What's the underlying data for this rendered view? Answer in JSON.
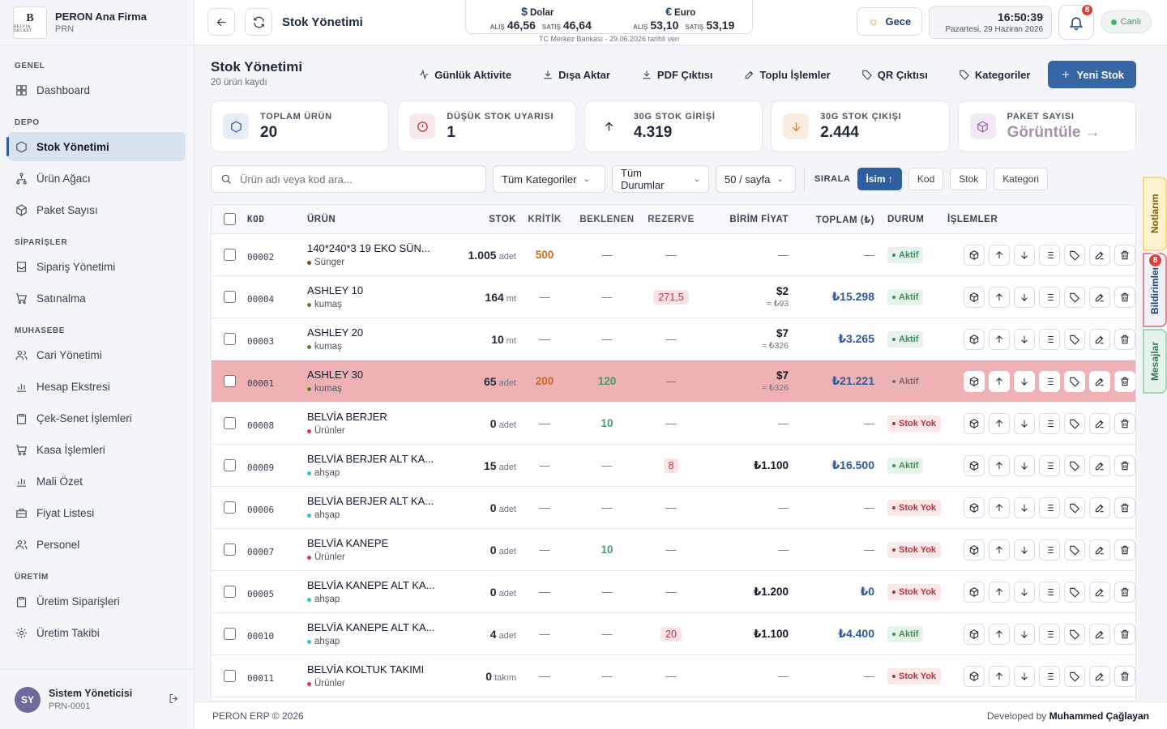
{
  "brand": {
    "name": "PERON Ana Firma",
    "code": "PRN",
    "logo_mark": "B",
    "logo_text": "BELVIA DECKET"
  },
  "sidebar": {
    "groups": [
      {
        "title": "GENEL",
        "items": [
          {
            "label": "Dashboard",
            "icon": "grid-icon"
          }
        ]
      },
      {
        "title": "DEPO",
        "items": [
          {
            "label": "Stok Yönetimi",
            "icon": "hexagon-icon",
            "active": true
          },
          {
            "label": "Ürün Ağacı",
            "icon": "tree-icon"
          },
          {
            "label": "Paket Sayısı",
            "icon": "box-icon"
          }
        ]
      },
      {
        "title": "SİPARİŞLER",
        "items": [
          {
            "label": "Sipariş Yönetimi",
            "icon": "inbox-icon"
          },
          {
            "label": "Satınalma",
            "icon": "cart-icon"
          }
        ]
      },
      {
        "title": "MUHASEBE",
        "items": [
          {
            "label": "Cari Yönetimi",
            "icon": "users-icon"
          },
          {
            "label": "Hesap Ekstresi",
            "icon": "bar-chart-icon"
          },
          {
            "label": "Çek-Senet İşlemleri",
            "icon": "clipboard-icon"
          },
          {
            "label": "Kasa İşlemleri",
            "icon": "cart-icon"
          },
          {
            "label": "Mali Özet",
            "icon": "bar-chart-icon"
          },
          {
            "label": "Fiyat Listesi",
            "icon": "briefcase-icon"
          },
          {
            "label": "Personel",
            "icon": "users-icon"
          }
        ]
      },
      {
        "title": "ÜRETİM",
        "items": [
          {
            "label": "Üretim Siparişleri",
            "icon": "clipboard-icon"
          },
          {
            "label": "Üretim Takibi",
            "icon": "gear-icon"
          }
        ]
      }
    ]
  },
  "user": {
    "initials": "SY",
    "name": "Sistem Yöneticisi",
    "code": "PRN-0001"
  },
  "topbar": {
    "title": "Stok Yönetimi",
    "usd": {
      "label": "Dolar",
      "symbol": "$",
      "buy_label": "ALIŞ",
      "buy": "46,56",
      "sell_label": "SATIŞ",
      "sell": "46,64"
    },
    "eur": {
      "label": "Euro",
      "symbol": "€",
      "buy_label": "ALIŞ",
      "buy": "53,10",
      "sell_label": "SATIŞ",
      "sell": "53,19"
    },
    "fx_note": "TC Merkez Bankası - 29.06.2026 tarihli veri",
    "theme_label": "Gece",
    "time": "16:50:39",
    "date": "Pazartesi, 29 Haziran 2026",
    "notif_count": "8",
    "live_label": "Canlı"
  },
  "page": {
    "title": "Stok Yönetimi",
    "subtitle": "20 ürün kaydı",
    "actions": [
      "Günlük Aktivite",
      "Dışa Aktar",
      "PDF Çıktısı",
      "Toplu İşlemler",
      "QR Çıktısı",
      "Kategoriler"
    ],
    "primary_action": "Yeni Stok"
  },
  "stats": [
    {
      "label": "TOPLAM ÜRÜN",
      "value": "20",
      "icon": "hexagon-icon"
    },
    {
      "label": "DÜŞÜK STOK UYARISI",
      "value": "1",
      "icon": "alert-icon"
    },
    {
      "label": "30G STOK GİRİŞİ",
      "value": "4.319",
      "icon": "arrow-up-icon"
    },
    {
      "label": "30G STOK ÇIKIŞI",
      "value": "2.444",
      "icon": "arrow-down-icon"
    },
    {
      "label": "PAKET SAYISI",
      "value": "Görüntüle →",
      "icon": "box-icon"
    }
  ],
  "filters": {
    "search_placeholder": "Ürün adı veya kod ara...",
    "category": "Tüm Kategoriler",
    "status": "Tüm Durumlar",
    "per_page": "50 / sayfa",
    "sort_label": "SIRALA",
    "sort_options": [
      "İsim ↑",
      "Kod",
      "Stok",
      "Kategori"
    ]
  },
  "table": {
    "headers": [
      "KOD",
      "ÜRÜN",
      "STOK",
      "KRİTİK",
      "BEKLENEN",
      "REZERVE",
      "BİRİM FİYAT",
      "TOPLAM (₺)",
      "DURUM",
      "İŞLEMLER"
    ],
    "rows": [
      {
        "code": "00002",
        "name": "140*240*3 19 EKO SÜN...",
        "cat": "Sünger",
        "cat_color": "#7a4a2a",
        "stock": "1.005",
        "unit": "adet",
        "crit": "500",
        "beck": "—",
        "rez": "—",
        "price": "—",
        "price_sub": "",
        "total": "—",
        "status": "Aktif",
        "ok": true,
        "critical": false
      },
      {
        "code": "00004",
        "name": "ASHLEY 10",
        "cat": "kumaş",
        "cat_color": "#6b7a2a",
        "stock": "164",
        "unit": "mt",
        "crit": "—",
        "beck": "—",
        "rez": "271,5",
        "price": "$2",
        "price_sub": "≈ ₺93",
        "total": "₺15.298",
        "status": "Aktif",
        "ok": true,
        "critical": false
      },
      {
        "code": "00003",
        "name": "ASHLEY 20",
        "cat": "kumaş",
        "cat_color": "#6b7a2a",
        "stock": "10",
        "unit": "mt",
        "crit": "—",
        "beck": "—",
        "rez": "—",
        "price": "$7",
        "price_sub": "≈ ₺326",
        "total": "₺3.265",
        "status": "Aktif",
        "ok": true,
        "critical": false
      },
      {
        "code": "00001",
        "name": "ASHLEY 30",
        "cat": "kumaş",
        "cat_color": "#6b7a2a",
        "stock": "65",
        "unit": "adet",
        "crit": "200",
        "beck": "120",
        "rez": "—",
        "price": "$7",
        "price_sub": "≈ ₺326",
        "total": "₺21.221",
        "status": "Aktif",
        "ok": true,
        "critical": true
      },
      {
        "code": "00008",
        "name": "BELVİA BERJER",
        "cat": "Ürünler",
        "cat_color": "#e0307a",
        "stock": "0",
        "unit": "adet",
        "crit": "—",
        "beck": "10",
        "rez": "—",
        "price": "—",
        "price_sub": "",
        "total": "—",
        "status": "Stok Yok",
        "ok": false,
        "critical": false
      },
      {
        "code": "00009",
        "name": "BELVİA BERJER ALT KA...",
        "cat": "ahşap",
        "cat_color": "#2ec4d4",
        "stock": "15",
        "unit": "adet",
        "crit": "—",
        "beck": "—",
        "rez": "8",
        "price": "₺1.100",
        "price_sub": "",
        "total": "₺16.500",
        "status": "Aktif",
        "ok": true,
        "critical": false
      },
      {
        "code": "00006",
        "name": "BELVİA BERJER ALT KA...",
        "cat": "ahşap",
        "cat_color": "#2ec4d4",
        "stock": "0",
        "unit": "adet",
        "crit": "—",
        "beck": "—",
        "rez": "—",
        "price": "—",
        "price_sub": "",
        "total": "—",
        "status": "Stok Yok",
        "ok": false,
        "critical": false
      },
      {
        "code": "00007",
        "name": "BELVİA KANEPE",
        "cat": "Ürünler",
        "cat_color": "#e0307a",
        "stock": "0",
        "unit": "adet",
        "crit": "—",
        "beck": "10",
        "rez": "—",
        "price": "—",
        "price_sub": "",
        "total": "—",
        "status": "Stok Yok",
        "ok": false,
        "critical": false
      },
      {
        "code": "00005",
        "name": "BELVİA KANEPE ALT KA...",
        "cat": "ahşap",
        "cat_color": "#2ec4d4",
        "stock": "0",
        "unit": "adet",
        "crit": "—",
        "beck": "—",
        "rez": "—",
        "price": "₺1.200",
        "price_sub": "",
        "total": "₺0",
        "status": "Stok Yok",
        "ok": false,
        "critical": false
      },
      {
        "code": "00010",
        "name": "BELVİA KANEPE ALT KA...",
        "cat": "ahşap",
        "cat_color": "#2ec4d4",
        "stock": "4",
        "unit": "adet",
        "crit": "—",
        "beck": "—",
        "rez": "20",
        "price": "₺1.100",
        "price_sub": "",
        "total": "₺4.400",
        "status": "Aktif",
        "ok": true,
        "critical": false
      },
      {
        "code": "00011",
        "name": "BELVİA KOLTUK TAKIMI",
        "cat": "Ürünler",
        "cat_color": "#e0307a",
        "stock": "0",
        "unit": "takım",
        "crit": "—",
        "beck": "—",
        "rez": "—",
        "price": "—",
        "price_sub": "",
        "total": "—",
        "status": "Stok Yok",
        "ok": false,
        "critical": false
      }
    ],
    "row_ops": [
      "package-icon",
      "arrow-up-icon",
      "arrow-down-icon",
      "list-icon",
      "tag-icon",
      "edit-icon",
      "trash-icon"
    ]
  },
  "side_tabs": {
    "notes": "Notlarım",
    "notifications": "Bildirimler",
    "notif_count": "8",
    "messages": "Mesajlar"
  },
  "footer": {
    "left": "PERON ERP © 2026",
    "right_prefix": "Developed by",
    "right_name": "Muhammed Çağlayan"
  }
}
